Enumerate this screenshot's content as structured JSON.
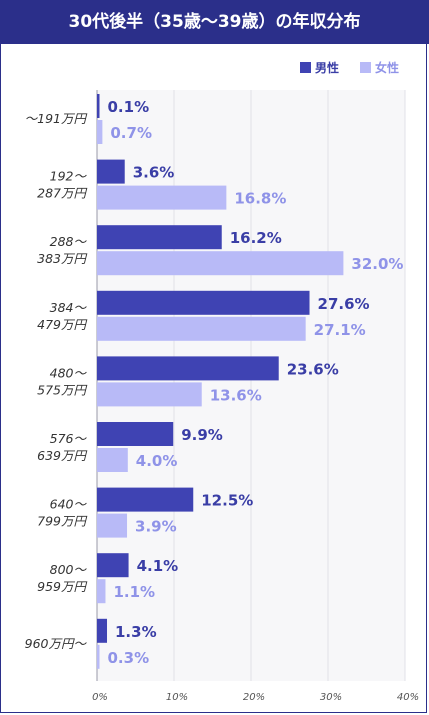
{
  "title": "30代後半（35歳〜39歳）の年収分布",
  "colors": {
    "male": "#3f43b3",
    "female": "#b8baf7",
    "male_text": "#3a3ea6",
    "female_text": "#8f93e8",
    "title_bg": "#2b2f8a"
  },
  "chart_data": {
    "type": "bar",
    "orientation": "horizontal",
    "title": "30代後半（35歳〜39歳）の年収分布",
    "categories": [
      [
        "〜191万円"
      ],
      [
        "192〜",
        "287万円"
      ],
      [
        "288〜",
        "383万円"
      ],
      [
        "384〜",
        "479万円"
      ],
      [
        "480〜",
        "575万円"
      ],
      [
        "576〜",
        "639万円"
      ],
      [
        "640〜",
        "799万円"
      ],
      [
        "800〜",
        "959万円"
      ],
      [
        "960万円〜"
      ]
    ],
    "series": [
      {
        "name": "男性",
        "values": [
          0.1,
          3.6,
          16.2,
          27.6,
          23.6,
          9.9,
          12.5,
          4.1,
          1.3
        ]
      },
      {
        "name": "女性",
        "values": [
          0.7,
          16.8,
          32.0,
          27.1,
          13.6,
          4.0,
          3.9,
          1.1,
          0.3
        ]
      }
    ],
    "xlim": [
      0,
      40
    ],
    "xticks": [
      "0%",
      "10%",
      "20%",
      "30%",
      "40%"
    ],
    "legend_position": "top-right",
    "value_suffix": "%"
  }
}
